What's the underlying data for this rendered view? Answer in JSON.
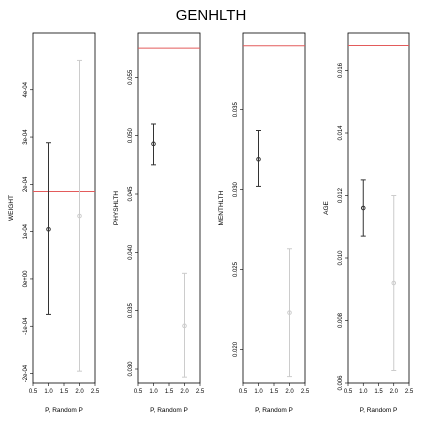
{
  "chart_data": {
    "type": "scatter",
    "title": "GENHLTH",
    "panels": [
      {
        "id": "weight",
        "ylabel": "WEIGHT",
        "xlabel": "P, Random P",
        "xlim": [
          0.5,
          2.5
        ],
        "xticks": [
          "0.5",
          "1.0",
          "1.5",
          "2.0",
          "2.5"
        ],
        "ylim": [
          -0.00022,
          0.00052
        ],
        "ytick_values": [
          -0.0002,
          -0.0001,
          0,
          0.0001,
          0.0002,
          0.0003,
          0.0004
        ],
        "ytick_labels": [
          "-2e-04",
          "-1e-04",
          "0e+00",
          "1e-04",
          "2e-04",
          "3e-04",
          "4e-04"
        ],
        "reference_line": 0.000185,
        "points": [
          {
            "x": 1,
            "y": 0.000105,
            "low": -7.5e-05,
            "high": 0.000288,
            "color": "#333333"
          },
          {
            "x": 2,
            "y": 0.000133,
            "low": -0.000195,
            "high": 0.000462,
            "color": "#cccccc"
          }
        ]
      },
      {
        "id": "physhlth",
        "ylabel": "PHYSHLTH",
        "xlabel": "P, Random P",
        "xlim": [
          0.5,
          2.5
        ],
        "xticks": [
          "0.5",
          "1.0",
          "1.5",
          "2.0",
          "2.5"
        ],
        "ylim": [
          0.0288,
          0.0588
        ],
        "ytick_values": [
          0.03,
          0.035,
          0.04,
          0.045,
          0.05,
          0.055
        ],
        "ytick_labels": [
          "0.030",
          "0.035",
          "0.040",
          "0.045",
          "0.050",
          "0.055"
        ],
        "reference_line": 0.0575,
        "points": [
          {
            "x": 1,
            "y": 0.0493,
            "low": 0.0475,
            "high": 0.051,
            "color": "#333333"
          },
          {
            "x": 2,
            "y": 0.0337,
            "low": 0.0293,
            "high": 0.0382,
            "color": "#cccccc"
          }
        ]
      },
      {
        "id": "menthlth",
        "ylabel": "MENTHLTH",
        "xlabel": "P, Random P",
        "xlim": [
          0.5,
          2.5
        ],
        "xticks": [
          "0.5",
          "1.0",
          "1.5",
          "2.0",
          "2.5"
        ],
        "ylim": [
          0.0179,
          0.0398
        ],
        "ytick_values": [
          0.02,
          0.025,
          0.03,
          0.035
        ],
        "ytick_labels": [
          "0.020",
          "0.025",
          "0.030",
          "0.035"
        ],
        "reference_line": 0.039,
        "points": [
          {
            "x": 1,
            "y": 0.0319,
            "low": 0.0302,
            "high": 0.0337,
            "color": "#333333"
          },
          {
            "x": 2,
            "y": 0.0223,
            "low": 0.0183,
            "high": 0.0263,
            "color": "#cccccc"
          }
        ]
      },
      {
        "id": "age",
        "ylabel": "AGE",
        "xlabel": "P, Random P",
        "xlim": [
          0.5,
          2.5
        ],
        "xticks": [
          "0.5",
          "1.0",
          "1.5",
          "2.0",
          "2.5"
        ],
        "ylim": [
          0.006,
          0.0172
        ],
        "ytick_values": [
          0.006,
          0.008,
          0.01,
          0.012,
          0.014,
          0.016
        ],
        "ytick_labels": [
          "0.006",
          "0.008",
          "0.010",
          "0.012",
          "0.014",
          "0.016"
        ],
        "reference_line": 0.0168,
        "points": [
          {
            "x": 1,
            "y": 0.0116,
            "low": 0.0107,
            "high": 0.0125,
            "color": "#333333"
          },
          {
            "x": 2,
            "y": 0.0092,
            "low": 0.0064,
            "high": 0.012,
            "color": "#cccccc"
          }
        ]
      }
    ],
    "reference_line_color": "#e35b5b",
    "grid": false,
    "legend": "none"
  }
}
